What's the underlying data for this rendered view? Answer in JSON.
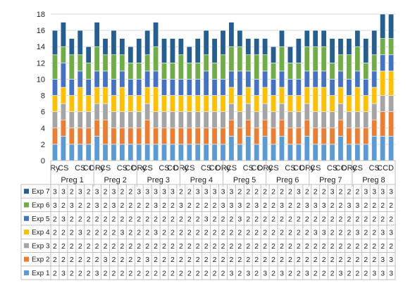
{
  "chart_data": {
    "type": "bar",
    "stacked": true,
    "ylim": [
      0,
      18
    ],
    "yticks": [
      0,
      2,
      4,
      6,
      8,
      10,
      12,
      14,
      16,
      18
    ],
    "grid": true,
    "legend": "table-left",
    "groups": [
      "Preg 1",
      "Preg 2",
      "Preg 3",
      "Preg 4",
      "Preg 5",
      "Preg 6",
      "Preg 7",
      "Preg 8"
    ],
    "category_labels": [
      "Ry",
      "CS",
      "",
      "CS",
      "CC",
      "DRy",
      "CS",
      "",
      "CS",
      "CC",
      "DRy",
      "CS",
      "",
      "CS",
      "CC",
      "DRy",
      "CS",
      "",
      "CS",
      "CC",
      "DRy",
      "CS",
      "",
      "CS",
      "CC",
      "DRy",
      "CS",
      "",
      "CS",
      "CC",
      "DRy",
      "CS",
      "",
      "CS",
      "CC",
      "DRy",
      "CS",
      "",
      "CS",
      "CC",
      "D"
    ],
    "series": [
      {
        "name": "Exp 1",
        "color": "#5B9BD5",
        "values": [
          2,
          3,
          2,
          2,
          2,
          3,
          2,
          2,
          2,
          2,
          2,
          2,
          2,
          2,
          2,
          2,
          2,
          2,
          2,
          2,
          2,
          3,
          2,
          3,
          2,
          3,
          2,
          3,
          2,
          2,
          3,
          2,
          2,
          2,
          3,
          2,
          2,
          2,
          3,
          3,
          3
        ]
      },
      {
        "name": "Exp 2",
        "color": "#ED7D31",
        "values": [
          2,
          2,
          2,
          2,
          2,
          2,
          3,
          2,
          2,
          2,
          2,
          3,
          2,
          2,
          2,
          2,
          2,
          2,
          2,
          2,
          2,
          2,
          2,
          2,
          2,
          2,
          2,
          2,
          2,
          2,
          2,
          2,
          2,
          2,
          2,
          2,
          2,
          2,
          2,
          3,
          3
        ]
      },
      {
        "name": "Exp 3",
        "color": "#A5A5A5",
        "values": [
          2,
          2,
          2,
          2,
          2,
          2,
          2,
          2,
          2,
          2,
          2,
          2,
          2,
          2,
          2,
          2,
          2,
          2,
          2,
          2,
          2,
          2,
          2,
          2,
          2,
          2,
          2,
          2,
          2,
          2,
          2,
          2,
          2,
          2,
          2,
          2,
          2,
          2,
          2,
          2,
          2
        ]
      },
      {
        "name": "Exp 4",
        "color": "#FFC000",
        "values": [
          2,
          2,
          2,
          3,
          2,
          2,
          2,
          2,
          3,
          2,
          2,
          2,
          3,
          2,
          2,
          2,
          2,
          2,
          2,
          2,
          2,
          2,
          2,
          2,
          2,
          2,
          2,
          2,
          2,
          2,
          2,
          3,
          3,
          2,
          2,
          2,
          3,
          2,
          2,
          3,
          3
        ]
      },
      {
        "name": "Exp 5",
        "color": "#4472C4",
        "values": [
          2,
          3,
          2,
          2,
          2,
          2,
          2,
          2,
          2,
          2,
          2,
          2,
          2,
          2,
          2,
          2,
          2,
          2,
          3,
          2,
          2,
          2,
          3,
          2,
          2,
          2,
          2,
          2,
          2,
          2,
          2,
          2,
          2,
          2,
          2,
          2,
          2,
          2,
          2,
          2,
          2
        ]
      },
      {
        "name": "Exp 6",
        "color": "#70AD47",
        "values": [
          3,
          2,
          3,
          2,
          2,
          3,
          2,
          3,
          2,
          2,
          2,
          2,
          3,
          2,
          2,
          3,
          2,
          2,
          2,
          2,
          3,
          3,
          3,
          2,
          3,
          2,
          2,
          3,
          2,
          2,
          3,
          3,
          3,
          2,
          2,
          3,
          3,
          2,
          2,
          2,
          2
        ]
      },
      {
        "name": "Exp 7",
        "color": "#255E91",
        "values": [
          3,
          3,
          2,
          3,
          2,
          3,
          2,
          3,
          2,
          2,
          3,
          3,
          3,
          3,
          3,
          2,
          2,
          3,
          3,
          3,
          3,
          3,
          2,
          2,
          2,
          2,
          2,
          2,
          2,
          3,
          2,
          2,
          2,
          3,
          2,
          2,
          2,
          3,
          3,
          3,
          3
        ]
      }
    ]
  }
}
